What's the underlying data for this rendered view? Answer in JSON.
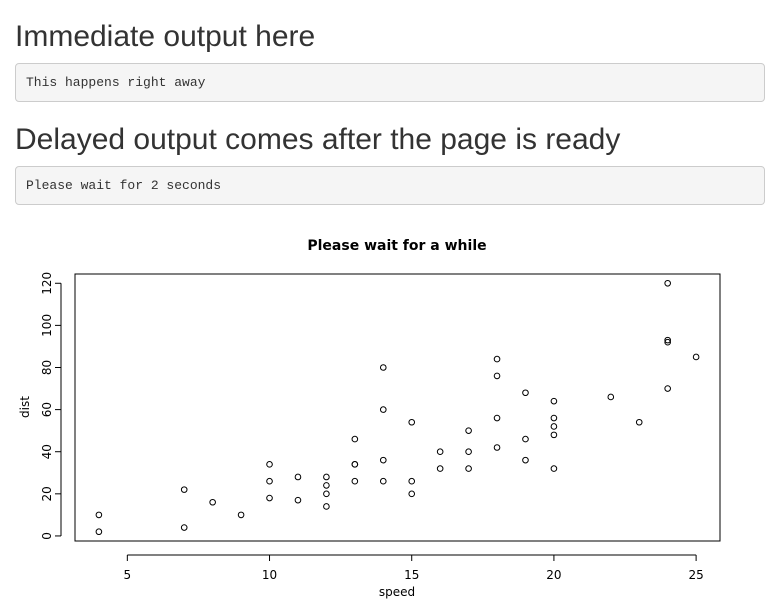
{
  "section1": {
    "heading": "Immediate output here",
    "output": "This happens right away"
  },
  "section2": {
    "heading": "Delayed output comes after the page is ready",
    "output": "Please wait for 2 seconds"
  },
  "chart_data": {
    "type": "scatter",
    "title": "Please wait for a while",
    "xlabel": "speed",
    "ylabel": "dist",
    "xlim": [
      3.16,
      25.84
    ],
    "ylim": [
      -2.4,
      124.4
    ],
    "xticks": [
      5,
      10,
      15,
      20,
      25
    ],
    "yticks": [
      0,
      20,
      40,
      60,
      80,
      100,
      120
    ],
    "grid": false,
    "x": [
      4,
      4,
      7,
      7,
      8,
      9,
      10,
      10,
      10,
      11,
      11,
      12,
      12,
      12,
      12,
      13,
      13,
      13,
      13,
      14,
      14,
      14,
      14,
      15,
      15,
      15,
      16,
      16,
      17,
      17,
      17,
      18,
      18,
      18,
      18,
      19,
      19,
      19,
      20,
      20,
      20,
      20,
      20,
      22,
      23,
      24,
      24,
      24,
      24,
      25
    ],
    "y": [
      2,
      10,
      4,
      22,
      16,
      10,
      18,
      26,
      34,
      17,
      28,
      14,
      20,
      24,
      28,
      26,
      34,
      34,
      46,
      26,
      36,
      60,
      80,
      20,
      26,
      54,
      32,
      40,
      32,
      40,
      50,
      42,
      56,
      76,
      84,
      36,
      46,
      68,
      32,
      48,
      52,
      56,
      64,
      66,
      54,
      70,
      92,
      93,
      120,
      85
    ]
  }
}
